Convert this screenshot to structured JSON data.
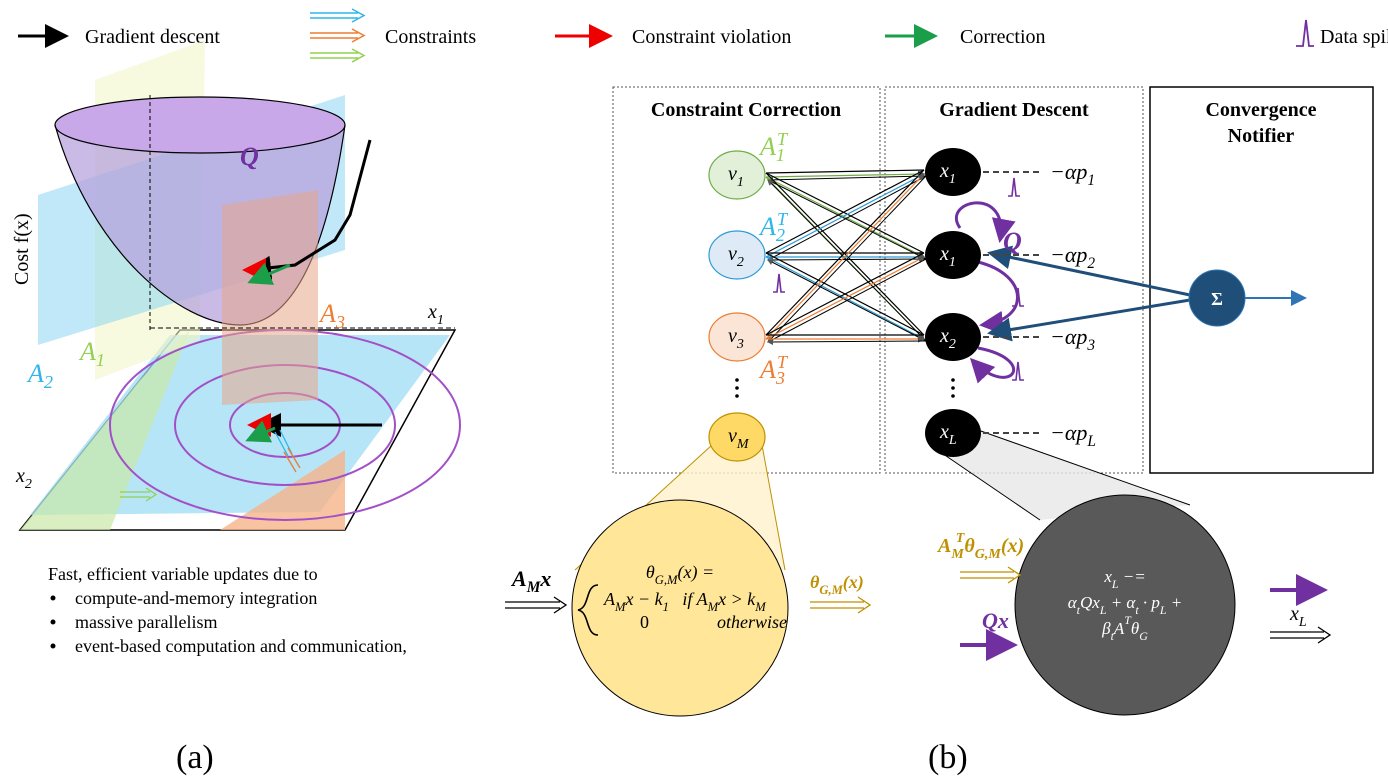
{
  "legend": [
    "Gradient descent",
    "Constraints",
    "Constraint violation",
    "Correction",
    "Data spike event"
  ],
  "panel_a": {
    "surface": "Q",
    "cost_axis": "Cost f(x)",
    "constraints": [
      [
        {
          "text": "A",
          "sub": "1"
        }
      ],
      [
        {
          "text": "A",
          "sub": "2"
        }
      ],
      [
        {
          "text": "A",
          "sub": "3"
        }
      ]
    ],
    "axes": [
      [
        {
          "text": "x",
          "sub": "1"
        }
      ],
      [
        {
          "text": "x",
          "sub": "2"
        }
      ]
    ],
    "caption": "Fast, efficient variable updates due to",
    "bullets": [
      "compute-and-memory integration",
      "massive parallelism",
      "event-based computation and communication,"
    ],
    "tag": "(a)"
  },
  "panel_b": {
    "boxes": [
      {
        "title": [
          "Constraint Correction"
        ]
      },
      {
        "title": [
          "Gradient Descent"
        ]
      },
      {
        "title": [
          "Convergence",
          "Notifier"
        ]
      }
    ],
    "constraint_nodes": [
      [
        {
          "text": "v",
          "sub": "1"
        }
      ],
      [
        {
          "text": "v",
          "sub": "2"
        }
      ],
      [
        {
          "text": "v",
          "sub": "3"
        }
      ],
      [
        {
          "text": "v",
          "sub": "M"
        }
      ]
    ],
    "transposes": [
      [
        {
          "text": "A",
          "sub": "1",
          "sup": "T"
        }
      ],
      [
        {
          "text": "A",
          "sub": "2",
          "sup": "T"
        }
      ],
      [
        {
          "text": "A",
          "sub": "3",
          "sup": "T"
        }
      ]
    ],
    "variable_nodes": [
      [
        {
          "text": "x",
          "sub": "1"
        }
      ],
      [
        {
          "text": "x",
          "sub": "1"
        }
      ],
      [
        {
          "text": "x",
          "sub": "2"
        }
      ],
      [
        {
          "text": "x",
          "sub": "L"
        }
      ]
    ],
    "costs": [
      [
        {
          "text": "−αp",
          "sub": "1"
        }
      ],
      [
        {
          "text": "−αp",
          "sub": "2"
        }
      ],
      [
        {
          "text": "−αp",
          "sub": "3"
        }
      ],
      [
        {
          "text": "−αp",
          "sub": "L"
        }
      ]
    ],
    "self_loop": "Q",
    "sum": "Σ",
    "constraint_detail": {
      "input": [
        {
          "text": "A",
          "sub": "M"
        },
        {
          "text": "x"
        }
      ],
      "lines": [
        [
          {
            "text": "θ",
            "sub": "G,M"
          },
          {
            "text": "(x) ="
          }
        ],
        [
          {
            "text": "A",
            "sub": "M"
          },
          {
            "text": "x − k",
            "sub": "1"
          },
          {
            "text": "   if "
          },
          {
            "text": "A",
            "sub": "M"
          },
          {
            "text": "x > k",
            "sub": "M"
          }
        ]
      ],
      "zero": "0",
      "otherwise": "otherwise",
      "output": [
        {
          "text": "θ",
          "sub": "G,M"
        },
        {
          "text": "(x)"
        }
      ]
    },
    "variable_detail": {
      "inputs": [
        [
          {
            "text": "A",
            "sub": "M",
            "sup": "T"
          },
          {
            "text": "θ",
            "sub": "G,M"
          },
          {
            "text": "(x)"
          }
        ],
        [
          {
            "text": "Qx"
          }
        ]
      ],
      "lines": [
        [
          {
            "text": "x",
            "sub": "L"
          },
          {
            "text": " −="
          }
        ],
        [
          {
            "text": "α",
            "sub": "t"
          },
          {
            "text": "Qx",
            "sub": "L"
          },
          {
            "text": " + α",
            "sub": "t"
          },
          {
            "text": " · p",
            "sub": "L"
          },
          {
            "text": " +"
          }
        ],
        [
          {
            "text": "β",
            "sub": "t"
          },
          {
            "text": "A",
            "sup": "T"
          },
          {
            "text": "θ",
            "sub": "G"
          }
        ]
      ],
      "output": [
        {
          "text": "x",
          "sub": "L"
        }
      ]
    },
    "tag": "(b)"
  }
}
